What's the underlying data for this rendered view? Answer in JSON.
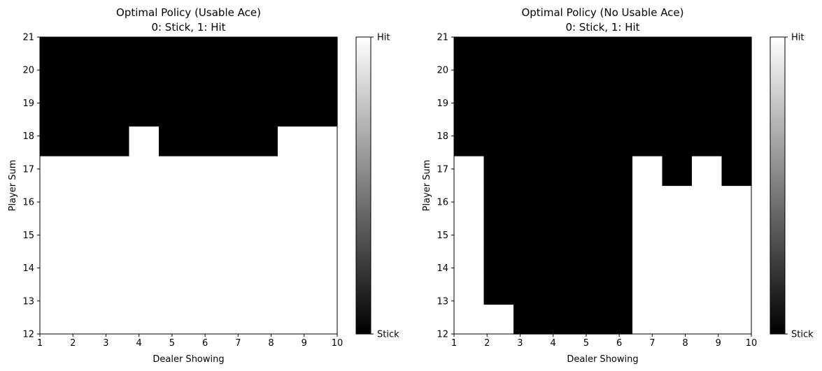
{
  "colors": {
    "stick": "#000000",
    "hit": "#ffffff",
    "axis": "#000000",
    "background": "#ffffff"
  },
  "chart_data": [
    {
      "type": "heatmap",
      "title": "Optimal Policy (Usable Ace)",
      "subtitle": "0: Stick, 1: Hit",
      "xlabel": "Dealer Showing",
      "ylabel": "Player Sum",
      "xlim": [
        1,
        10
      ],
      "ylim": [
        12,
        21
      ],
      "x_ticks": [
        1,
        2,
        3,
        4,
        5,
        6,
        7,
        8,
        9,
        10
      ],
      "y_ticks": [
        12,
        13,
        14,
        15,
        16,
        17,
        18,
        19,
        20,
        21
      ],
      "colorbar": {
        "min_label": "Stick",
        "max_label": "Hit",
        "min_value": 0,
        "max_value": 1
      },
      "rows_player_sum": [
        12,
        13,
        14,
        15,
        16,
        17,
        18,
        19,
        20,
        21
      ],
      "cols_dealer_showing": [
        1,
        2,
        3,
        4,
        5,
        6,
        7,
        8,
        9,
        10
      ],
      "values": [
        [
          1,
          1,
          1,
          1,
          1,
          1,
          1,
          1,
          1,
          1
        ],
        [
          1,
          1,
          1,
          1,
          1,
          1,
          1,
          1,
          1,
          1
        ],
        [
          1,
          1,
          1,
          1,
          1,
          1,
          1,
          1,
          1,
          1
        ],
        [
          1,
          1,
          1,
          1,
          1,
          1,
          1,
          1,
          1,
          1
        ],
        [
          1,
          1,
          1,
          1,
          1,
          1,
          1,
          1,
          1,
          1
        ],
        [
          1,
          1,
          1,
          1,
          1,
          1,
          1,
          1,
          1,
          1
        ],
        [
          0,
          0,
          0,
          1,
          0,
          0,
          0,
          0,
          1,
          1
        ],
        [
          0,
          0,
          0,
          0,
          0,
          0,
          0,
          0,
          0,
          0
        ],
        [
          0,
          0,
          0,
          0,
          0,
          0,
          0,
          0,
          0,
          0
        ],
        [
          0,
          0,
          0,
          0,
          0,
          0,
          0,
          0,
          0,
          0
        ]
      ]
    },
    {
      "type": "heatmap",
      "title": "Optimal Policy (No Usable Ace)",
      "subtitle": "0: Stick, 1: Hit",
      "xlabel": "Dealer Showing",
      "ylabel": "Player Sum",
      "xlim": [
        1,
        10
      ],
      "ylim": [
        12,
        21
      ],
      "x_ticks": [
        1,
        2,
        3,
        4,
        5,
        6,
        7,
        8,
        9,
        10
      ],
      "y_ticks": [
        12,
        13,
        14,
        15,
        16,
        17,
        18,
        19,
        20,
        21
      ],
      "colorbar": {
        "min_label": "Stick",
        "max_label": "Hit",
        "min_value": 0,
        "max_value": 1
      },
      "rows_player_sum": [
        12,
        13,
        14,
        15,
        16,
        17,
        18,
        19,
        20,
        21
      ],
      "cols_dealer_showing": [
        1,
        2,
        3,
        4,
        5,
        6,
        7,
        8,
        9,
        10
      ],
      "values": [
        [
          1,
          1,
          0,
          0,
          0,
          0,
          1,
          1,
          1,
          1
        ],
        [
          1,
          0,
          0,
          0,
          0,
          0,
          1,
          1,
          1,
          1
        ],
        [
          1,
          0,
          0,
          0,
          0,
          0,
          1,
          1,
          1,
          1
        ],
        [
          1,
          0,
          0,
          0,
          0,
          0,
          1,
          1,
          1,
          1
        ],
        [
          1,
          0,
          0,
          0,
          0,
          0,
          1,
          1,
          1,
          1
        ],
        [
          1,
          0,
          0,
          0,
          0,
          0,
          1,
          0,
          1,
          0
        ],
        [
          0,
          0,
          0,
          0,
          0,
          0,
          0,
          0,
          0,
          0
        ],
        [
          0,
          0,
          0,
          0,
          0,
          0,
          0,
          0,
          0,
          0
        ],
        [
          0,
          0,
          0,
          0,
          0,
          0,
          0,
          0,
          0,
          0
        ],
        [
          0,
          0,
          0,
          0,
          0,
          0,
          0,
          0,
          0,
          0
        ]
      ]
    }
  ]
}
